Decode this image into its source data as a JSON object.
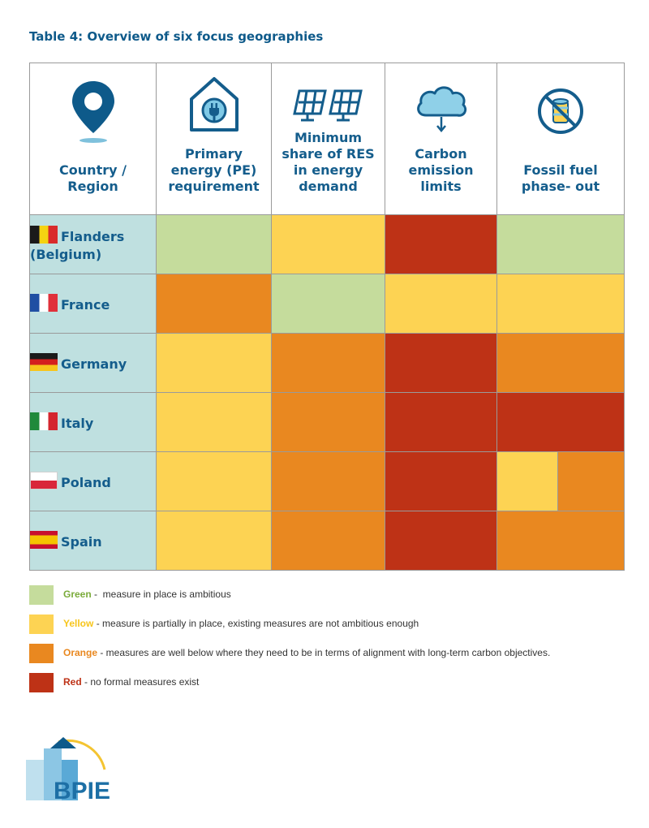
{
  "title": "Table 4: Overview of six focus geographies",
  "colors": {
    "green": "#c5dc9c",
    "yellow": "#fdd353",
    "orange": "#e98820",
    "red": "#be3216",
    "country_bg": "#bfe0e0",
    "heading": "#145d8c"
  },
  "columns": [
    {
      "label": "Country /\nRegion",
      "icon": "location-pin-icon"
    },
    {
      "label": "Primary\nenergy (PE)\nrequirement",
      "icon": "house-plug-icon"
    },
    {
      "label": "Minimum\nshare of RES\nin energy\ndemand",
      "icon": "solar-panels-icon"
    },
    {
      "label": "Carbon\nemission\nlimits",
      "icon": "cloud-arrow-icon"
    },
    {
      "label": "Fossil fuel\nphase- out",
      "icon": "no-fossil-fuel-icon"
    }
  ],
  "rows": [
    {
      "country": "Flanders (Belgium)",
      "flag": "belgium-flag",
      "cells": [
        "green",
        "yellow",
        "red",
        "green"
      ]
    },
    {
      "country": "France",
      "flag": "france-flag",
      "cells": [
        "orange",
        "green",
        "yellow",
        "yellow"
      ]
    },
    {
      "country": "Germany",
      "flag": "germany-flag",
      "cells": [
        "yellow",
        "orange",
        "red",
        "orange"
      ]
    },
    {
      "country": "Italy",
      "flag": "italy-flag",
      "cells": [
        "yellow",
        "orange",
        "red",
        "red"
      ]
    },
    {
      "country": "Poland",
      "flag": "poland-flag",
      "cells": [
        "yellow",
        "orange",
        "red",
        [
          "yellow",
          "orange"
        ]
      ]
    },
    {
      "country": "Spain",
      "flag": "spain-flag",
      "cells": [
        "yellow",
        "orange",
        "red",
        "orange"
      ]
    }
  ],
  "legend": [
    {
      "key": "green",
      "name": "Green",
      "text": " -  measure in place is ambitious"
    },
    {
      "key": "yellow",
      "name": "Yellow",
      "text": " - measure is partially in place, existing measures are not ambitious enough"
    },
    {
      "key": "orange",
      "name": "Orange",
      "text": " - measures are well below where they need to be in terms of alignment with long-term carbon objectives."
    },
    {
      "key": "red",
      "name": "Red",
      "text": " - no formal measures exist"
    }
  ],
  "logo": {
    "text": "BPIE"
  }
}
